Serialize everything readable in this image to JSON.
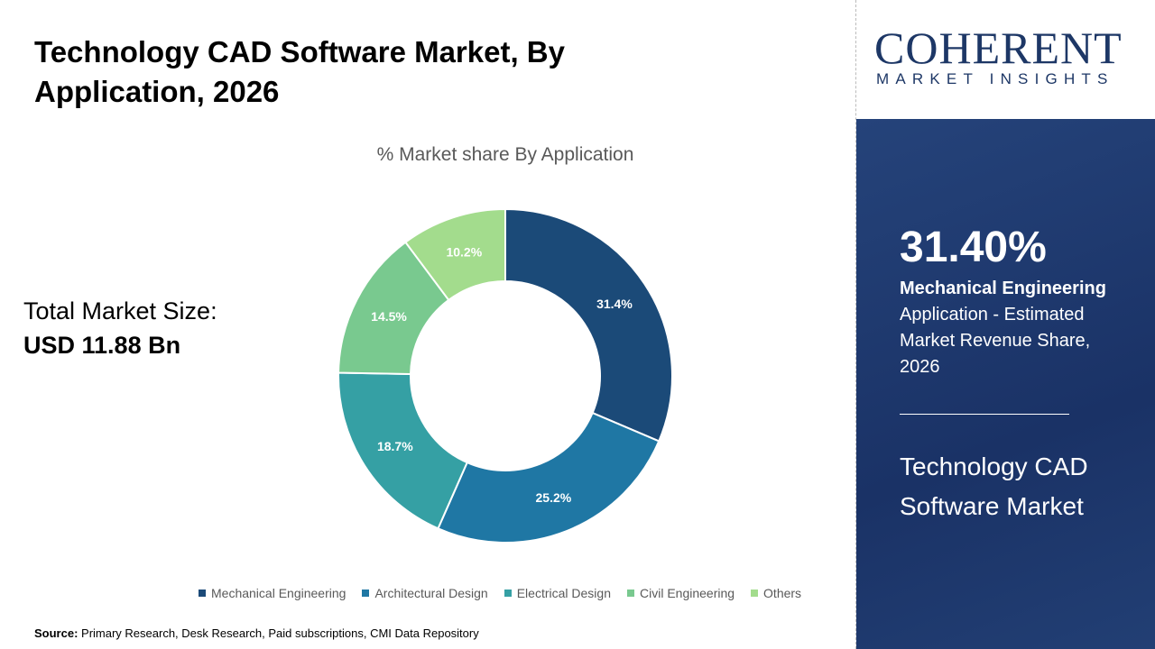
{
  "title": "Technology CAD Software Market, By Application, 2026",
  "total_label": "Total Market Size:",
  "total_value": "USD 11.88 Bn",
  "source_label": "Source:",
  "source_text": " Primary Research, Desk Research, Paid subscriptions, CMI Data Repository",
  "logo": {
    "top": "COHERENT",
    "bottom": "MARKET INSIGHTS"
  },
  "panel": {
    "percent": "31.40%",
    "segment": "Mechanical Engineering",
    "description": "Application - Estimated Market Revenue Share, 2026",
    "market": "Technology CAD Software Market",
    "bg_color": "#1e3a6e"
  },
  "chart_data": {
    "type": "pie",
    "donut": true,
    "title": "% Market share By Application",
    "categories": [
      "Mechanical Engineering",
      "Architectural Design",
      "Electrical Design",
      "Civil Engineering",
      "Others"
    ],
    "values": [
      31.4,
      25.2,
      18.7,
      14.5,
      10.2
    ],
    "labels": [
      "31.4%",
      "25.2%",
      "18.7%",
      "14.5%",
      "10.2%"
    ],
    "colors": [
      "#1b4a78",
      "#1f77a4",
      "#35a0a4",
      "#79c98f",
      "#a3dc8d"
    ],
    "legend": "bottom"
  }
}
